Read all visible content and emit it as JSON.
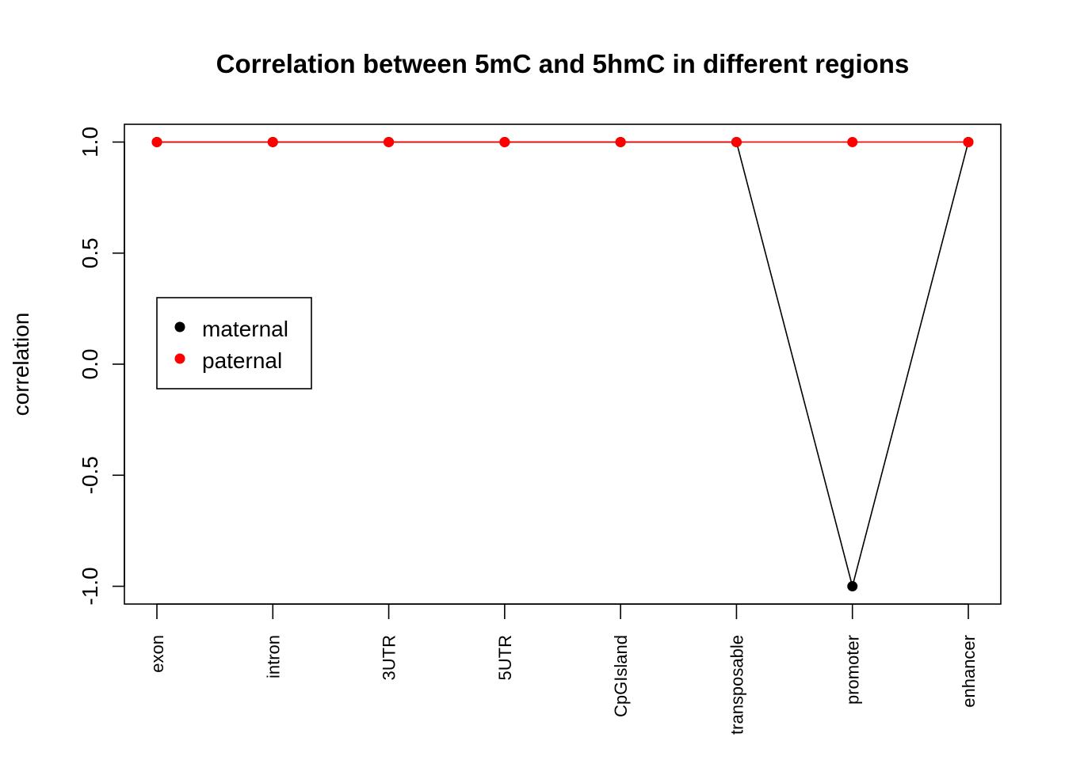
{
  "chart_data": {
    "type": "line",
    "title": "Correlation between 5mC and 5hmC  in different regions",
    "xlabel": "",
    "ylabel": "correlation",
    "categories": [
      "exon",
      "intron",
      "3UTR",
      "5UTR",
      "CpGIsland",
      "transposable",
      "promoter",
      "enhancer"
    ],
    "yticks": [
      "-1.0",
      "-0.5",
      "0.0",
      "0.5",
      "1.0"
    ],
    "ylim": [
      -1.08,
      1.08
    ],
    "grid": false,
    "legend_position": "left",
    "series": [
      {
        "name": "maternal",
        "color": "#000000",
        "values": [
          1,
          1,
          1,
          1,
          1,
          1,
          -1,
          1
        ]
      },
      {
        "name": "paternal",
        "color": "#ff0000",
        "values": [
          1,
          1,
          1,
          1,
          1,
          1,
          1,
          1
        ]
      }
    ]
  }
}
